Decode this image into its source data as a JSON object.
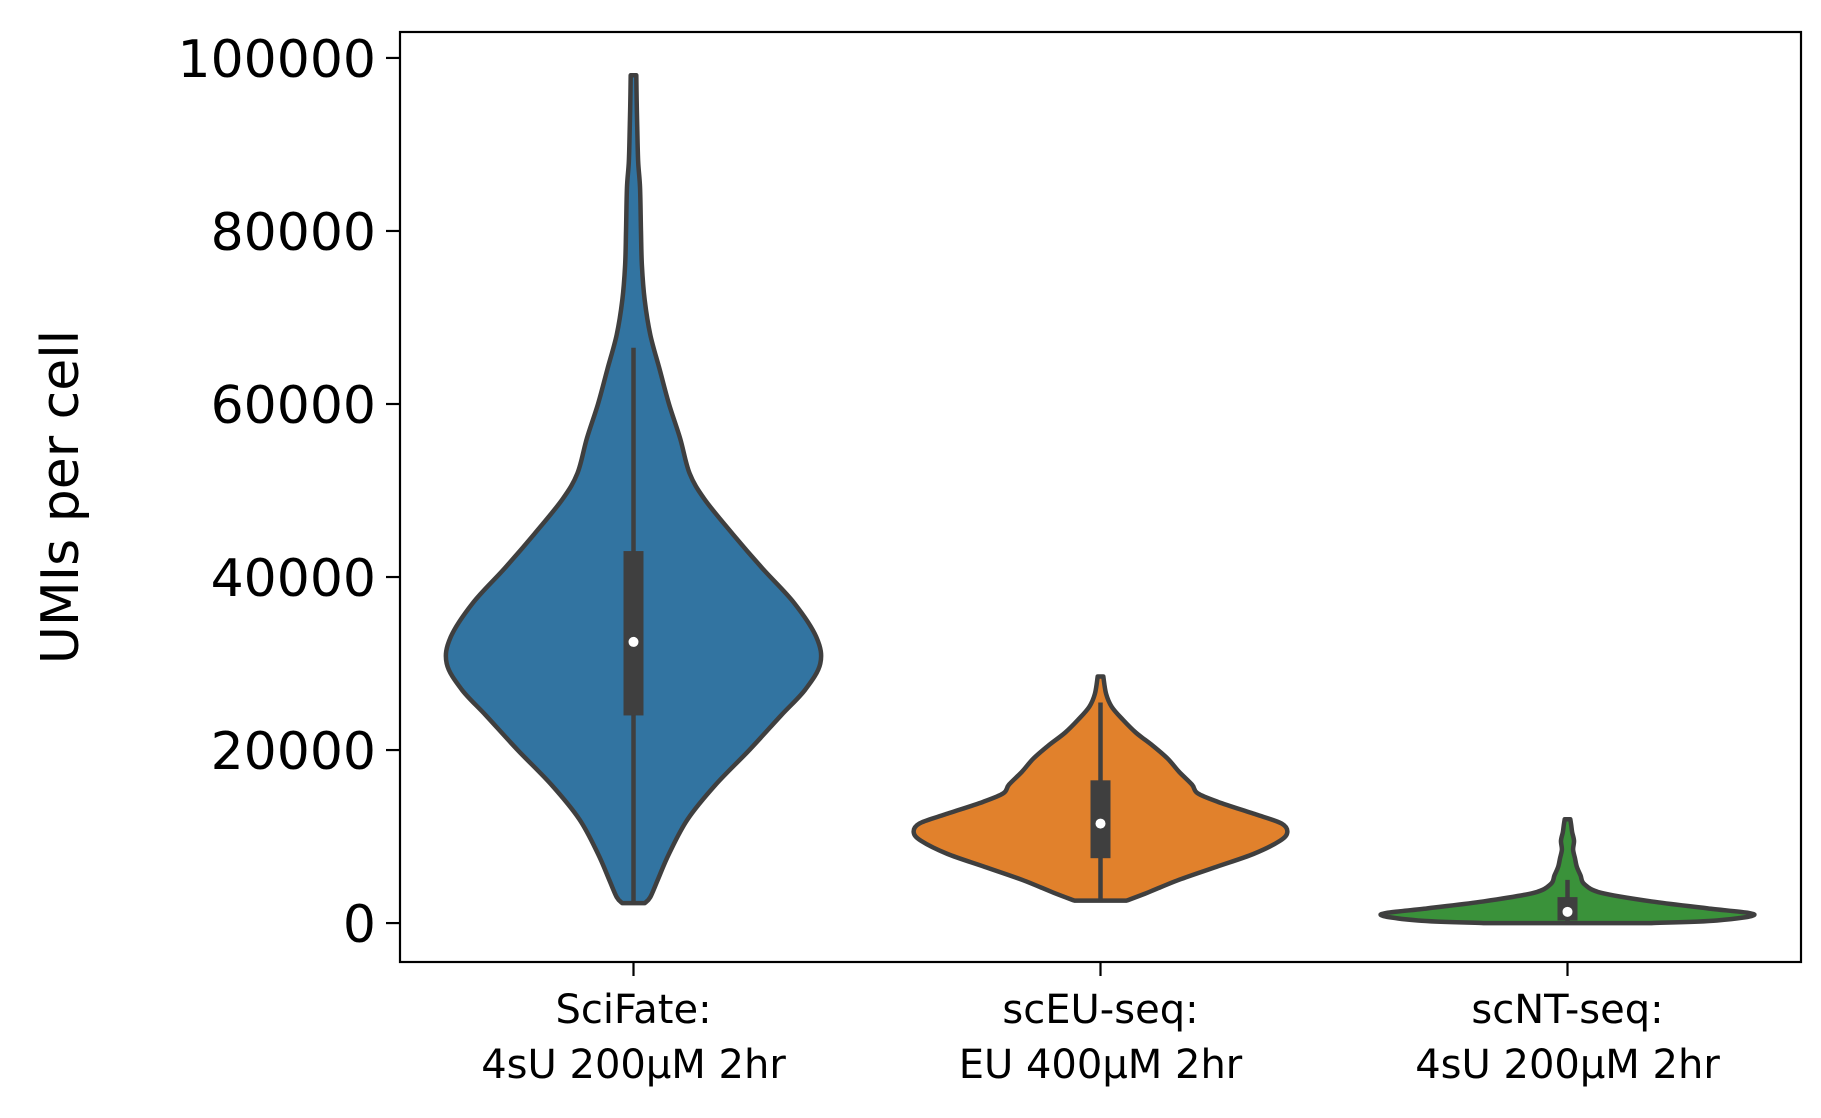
{
  "chart_data": {
    "type": "violin",
    "title": "",
    "xlabel": "",
    "ylabel": "UMIs per cell",
    "ylim": [
      -4500,
      103000
    ],
    "yticks": [
      0,
      20000,
      40000,
      60000,
      80000,
      100000
    ],
    "ytick_labels": [
      "0",
      "20000",
      "40000",
      "60000",
      "80000",
      "100000"
    ],
    "grid": false,
    "legend": "none",
    "categories": [
      {
        "line1": "SciFate:",
        "line2": "4sU 200μM 2hr"
      },
      {
        "line1": "scEU-seq:",
        "line2": "EU 400μM 2hr"
      },
      {
        "line1": "scNT-seq:",
        "line2": "4sU 200μM 2hr"
      }
    ],
    "series": [
      {
        "color": "#3274a1",
        "min": 2300,
        "max": 98000,
        "q1": 24000,
        "median": 32500,
        "q3": 43000,
        "whisker_low": 2300,
        "whisker_high": 66500,
        "profile": [
          [
            2300,
            0.06
          ],
          [
            3000,
            0.09
          ],
          [
            5000,
            0.13
          ],
          [
            8000,
            0.19
          ],
          [
            12000,
            0.29
          ],
          [
            16000,
            0.44
          ],
          [
            20000,
            0.62
          ],
          [
            24000,
            0.79
          ],
          [
            27000,
            0.92
          ],
          [
            30000,
            1.0
          ],
          [
            33000,
            0.98
          ],
          [
            37000,
            0.86
          ],
          [
            41000,
            0.69
          ],
          [
            45000,
            0.53
          ],
          [
            49000,
            0.38
          ],
          [
            52000,
            0.3
          ],
          [
            56000,
            0.25
          ],
          [
            60000,
            0.19
          ],
          [
            64000,
            0.14
          ],
          [
            68000,
            0.09
          ],
          [
            72000,
            0.06
          ],
          [
            76000,
            0.045
          ],
          [
            80000,
            0.04
          ],
          [
            85000,
            0.035
          ],
          [
            88000,
            0.025
          ],
          [
            92000,
            0.02
          ],
          [
            95000,
            0.017
          ],
          [
            98000,
            0.015
          ]
        ]
      },
      {
        "color": "#e1812c",
        "min": 2600,
        "max": 28500,
        "q1": 7500,
        "median": 11500,
        "q3": 16500,
        "whisker_low": 2600,
        "whisker_high": 25500,
        "profile": [
          [
            2600,
            0.14
          ],
          [
            3500,
            0.25
          ],
          [
            5000,
            0.42
          ],
          [
            6500,
            0.62
          ],
          [
            8000,
            0.82
          ],
          [
            9500,
            0.96
          ],
          [
            10500,
            1.0
          ],
          [
            11500,
            0.97
          ],
          [
            12500,
            0.84
          ],
          [
            14000,
            0.63
          ],
          [
            15000,
            0.52
          ],
          [
            16000,
            0.49
          ],
          [
            17500,
            0.42
          ],
          [
            19000,
            0.36
          ],
          [
            20500,
            0.28
          ],
          [
            22000,
            0.19
          ],
          [
            23500,
            0.12
          ],
          [
            25000,
            0.06
          ],
          [
            26500,
            0.03
          ],
          [
            28500,
            0.015
          ]
        ]
      },
      {
        "color": "#3a923a",
        "min": 0,
        "max": 12000,
        "q1": 300,
        "median": 1300,
        "q3": 3000,
        "whisker_low": 0,
        "whisker_high": 5000,
        "profile": [
          [
            0,
            0.45
          ],
          [
            300,
            0.8
          ],
          [
            1000,
            1.0
          ],
          [
            1700,
            0.75
          ],
          [
            2500,
            0.45
          ],
          [
            3500,
            0.18
          ],
          [
            4500,
            0.09
          ],
          [
            5500,
            0.07
          ],
          [
            6500,
            0.05
          ],
          [
            7500,
            0.04
          ],
          [
            8500,
            0.03
          ],
          [
            9500,
            0.035
          ],
          [
            10500,
            0.025
          ],
          [
            11300,
            0.02
          ],
          [
            12000,
            0.015
          ]
        ]
      }
    ]
  }
}
